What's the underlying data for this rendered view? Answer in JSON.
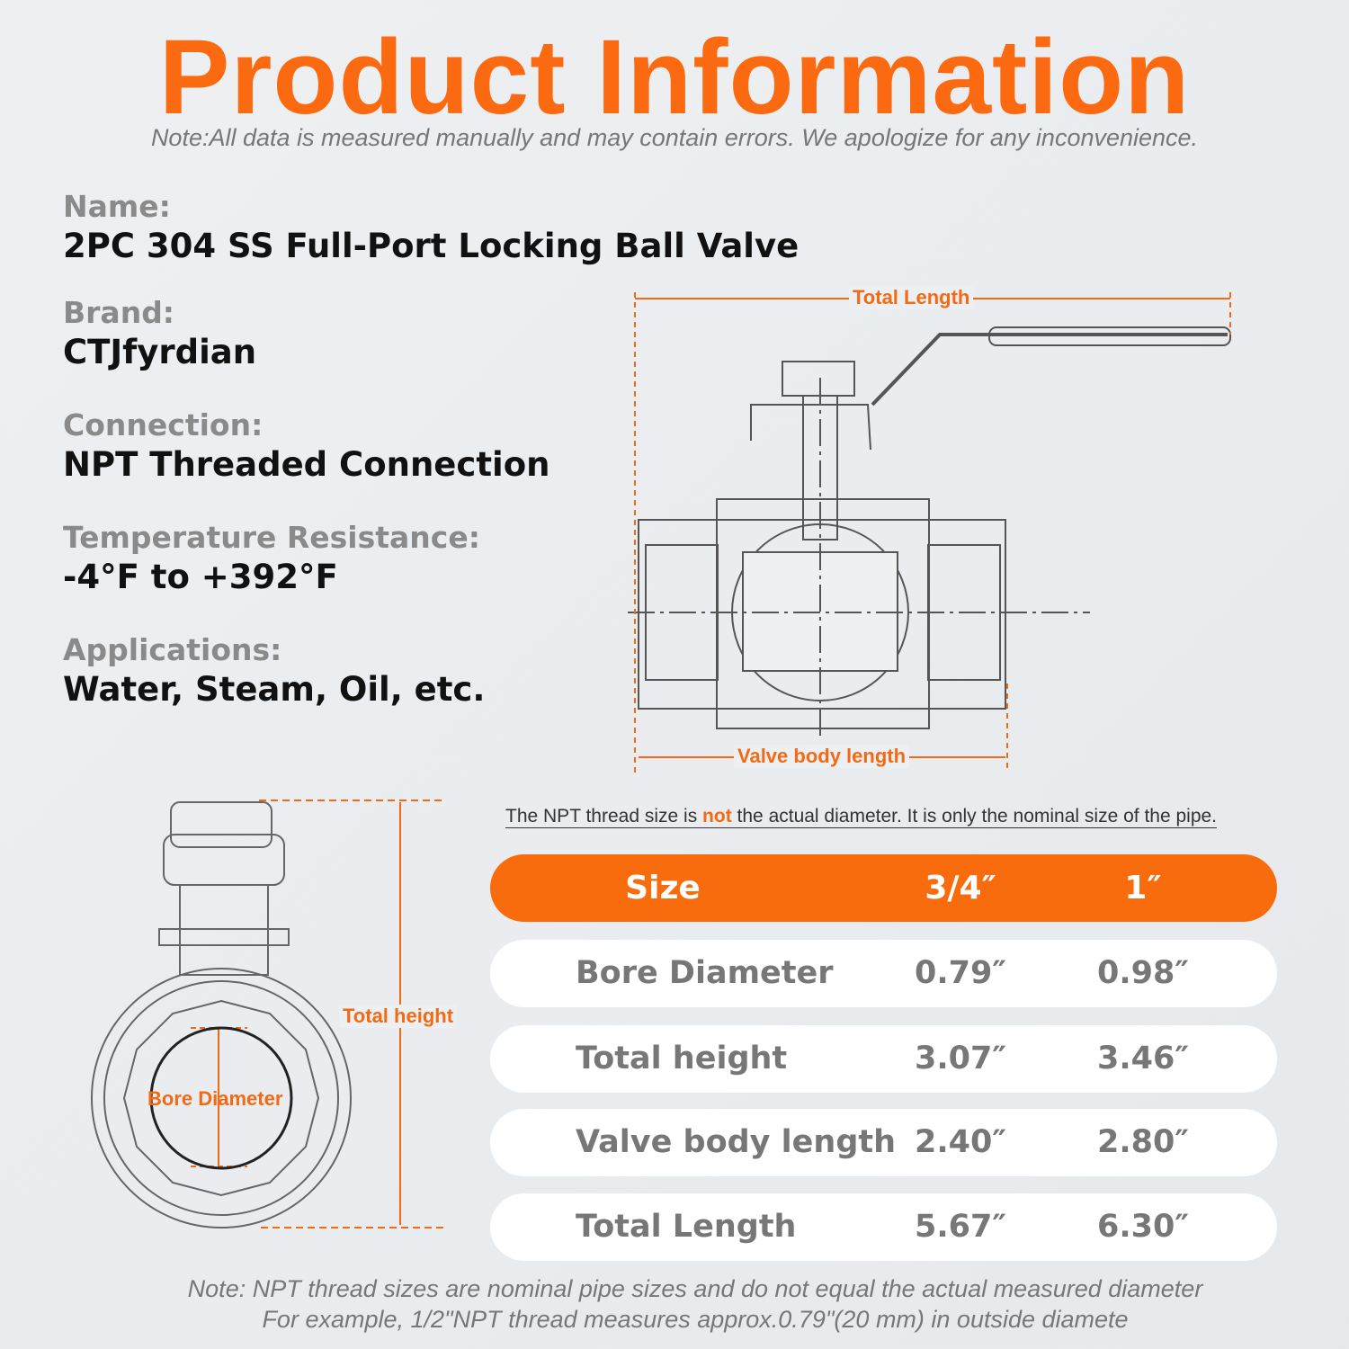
{
  "header": {
    "title": "Product Information",
    "note": "Note:All data is measured manually and may contain errors. We apologize for any inconvenience."
  },
  "specs": [
    {
      "label": "Name:",
      "value": "2PC 304 SS Full-Port Locking Ball Valve"
    },
    {
      "label": "Brand:",
      "value": "CTJfyrdian"
    },
    {
      "label": "Connection:",
      "value": "NPT Threaded Connection"
    },
    {
      "label": "Temperature Resistance:",
      "value": "-4°F to +392°F"
    },
    {
      "label": "Applications:",
      "value": "Water, Steam, Oil, etc."
    }
  ],
  "diagram": {
    "total_length": "Total Length",
    "valve_body_length": "Valve body length",
    "total_height": "Total height",
    "bore_diameter": "Bore Diameter"
  },
  "npt_note": {
    "before": "The NPT thread size is ",
    "emphasis": "not",
    "after": " the actual diameter. It is only the nominal size of the pipe."
  },
  "table": {
    "header": [
      "Size",
      "3/4″",
      "1″"
    ],
    "rows": [
      [
        "Bore Diameter",
        "0.79″",
        "0.98″"
      ],
      [
        "Total height",
        "3.07″",
        "3.46″"
      ],
      [
        "Valve body length",
        "2.40″",
        "2.80″"
      ],
      [
        "Total Length",
        "5.67″",
        "6.30″"
      ]
    ]
  },
  "footer": {
    "line1": "Note: NPT thread sizes are nominal pipe sizes and do not equal the actual measured diameter",
    "line2": "For example, 1/2\"NPT thread measures approx.0.79\"(20 mm) in outside diamete"
  }
}
